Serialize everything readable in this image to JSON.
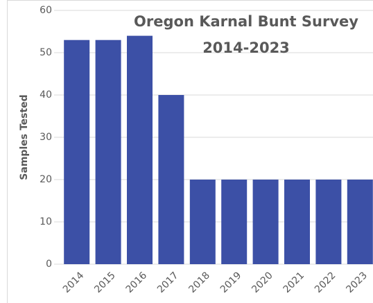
{
  "chart_data": {
    "type": "bar",
    "title": [
      "Oregon Karnal Bunt Survey",
      "2014-2023"
    ],
    "ylabel": "Samples Tested",
    "categories": [
      "2014",
      "2015",
      "2016",
      "2017",
      "2018",
      "2019",
      "2020",
      "2021",
      "2022",
      "2023"
    ],
    "values": [
      53,
      53,
      54,
      40,
      20,
      20,
      20,
      20,
      20,
      20
    ],
    "color": "#3c50a6",
    "ylim": [
      0,
      60
    ],
    "yticks": [
      0,
      10,
      20,
      30,
      40,
      50,
      60
    ],
    "grid": true
  }
}
